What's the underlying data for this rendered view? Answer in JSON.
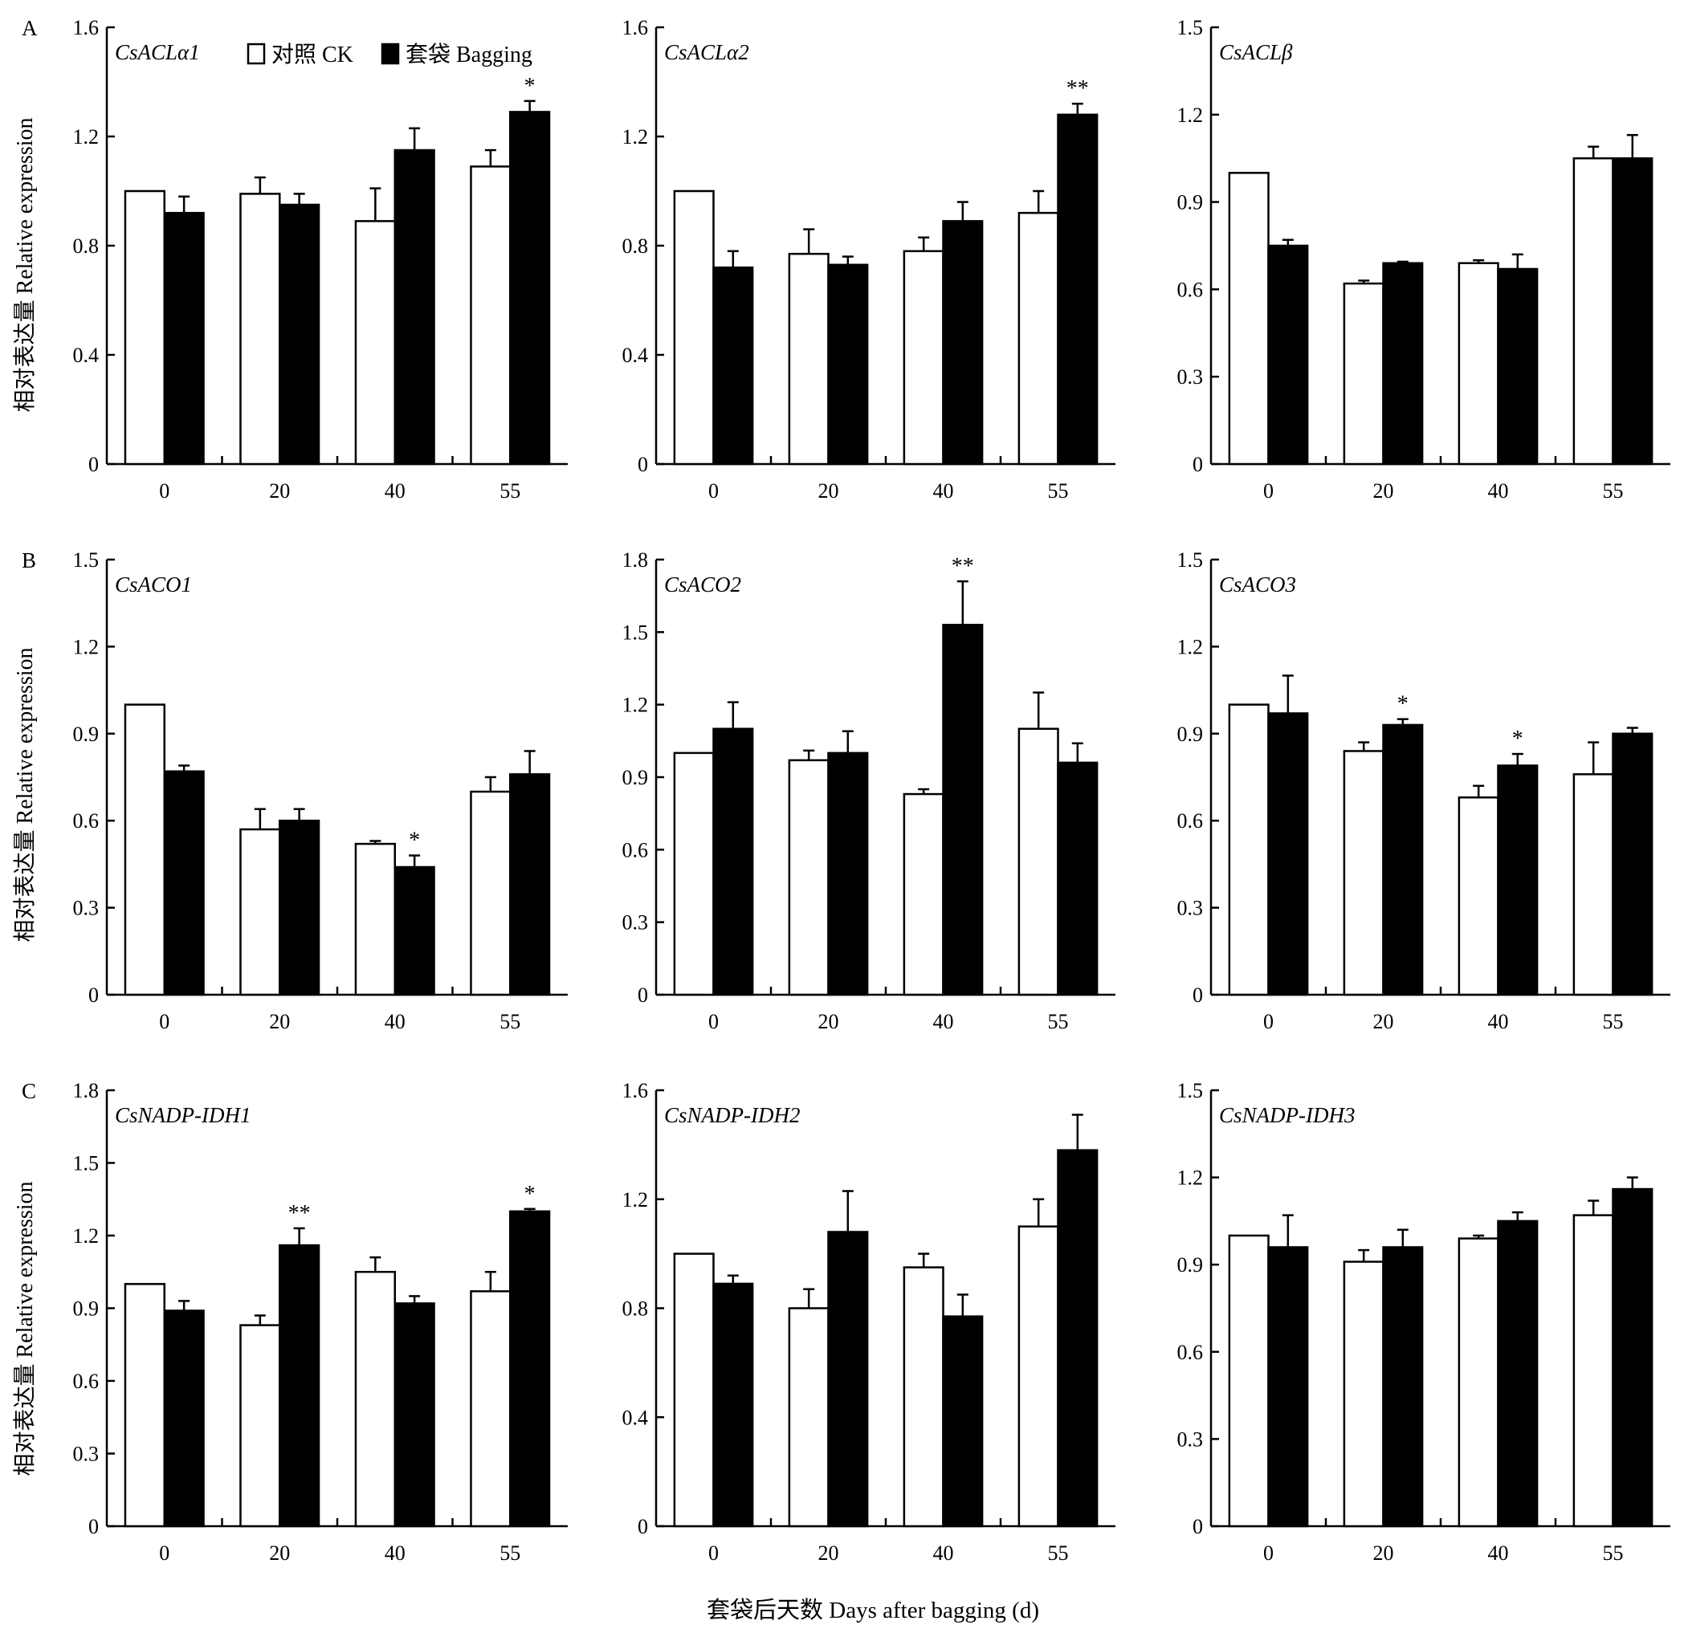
{
  "legend": {
    "ck": "对照 CK",
    "bagging": "套袋 Bagging"
  },
  "ylabel": "相对表达量 Relative expression",
  "xlabel": "套袋后天数 Days after bagging (d)",
  "colors": {
    "ck": "#ffffff",
    "bagging": "#000000",
    "axis": "#000000"
  },
  "chart_data": [
    {
      "type": "bar",
      "panel_letter": "A",
      "title": "CsACLα1",
      "categories": [
        "0",
        "20",
        "40",
        "55"
      ],
      "ylim": [
        0,
        1.6
      ],
      "yticks": [
        "0",
        "0.4",
        "0.8",
        "1.2",
        "1.6"
      ],
      "series": [
        {
          "name": "对照 CK",
          "values": [
            1.0,
            0.99,
            0.89,
            1.09
          ],
          "errors": [
            0,
            0.06,
            0.12,
            0.06
          ],
          "sig": [
            "",
            "",
            "",
            ""
          ]
        },
        {
          "name": "套袋 Bagging",
          "values": [
            0.92,
            0.95,
            1.15,
            1.29
          ],
          "errors": [
            0.06,
            0.04,
            0.08,
            0.04
          ],
          "sig": [
            "",
            "",
            "",
            "*"
          ]
        }
      ]
    },
    {
      "type": "bar",
      "panel_letter": "",
      "title": "CsACLα2",
      "categories": [
        "0",
        "20",
        "40",
        "55"
      ],
      "ylim": [
        0,
        1.6
      ],
      "yticks": [
        "0",
        "0.4",
        "0.8",
        "1.2",
        "1.6"
      ],
      "series": [
        {
          "name": "对照 CK",
          "values": [
            1.0,
            0.77,
            0.78,
            0.92
          ],
          "errors": [
            0,
            0.09,
            0.05,
            0.08
          ],
          "sig": [
            "",
            "",
            "",
            ""
          ]
        },
        {
          "name": "套袋 Bagging",
          "values": [
            0.72,
            0.73,
            0.89,
            1.28
          ],
          "errors": [
            0.06,
            0.03,
            0.07,
            0.04
          ],
          "sig": [
            "",
            "",
            "",
            "**"
          ]
        }
      ]
    },
    {
      "type": "bar",
      "panel_letter": "",
      "title": "CsACLβ",
      "categories": [
        "0",
        "20",
        "40",
        "55"
      ],
      "ylim": [
        0,
        1.5
      ],
      "yticks": [
        "0",
        "0.3",
        "0.6",
        "0.9",
        "1.2",
        "1.5"
      ],
      "series": [
        {
          "name": "对照 CK",
          "values": [
            1.0,
            0.62,
            0.69,
            1.05
          ],
          "errors": [
            0,
            0.01,
            0.01,
            0.04
          ],
          "sig": [
            "",
            "",
            "",
            ""
          ]
        },
        {
          "name": "套袋 Bagging",
          "values": [
            0.75,
            0.69,
            0.67,
            1.05
          ],
          "errors": [
            0.02,
            0.005,
            0.05,
            0.08
          ],
          "sig": [
            "",
            "",
            "",
            ""
          ]
        }
      ]
    },
    {
      "type": "bar",
      "panel_letter": "B",
      "title": "CsACO1",
      "categories": [
        "0",
        "20",
        "40",
        "55"
      ],
      "ylim": [
        0,
        1.5
      ],
      "yticks": [
        "0",
        "0.3",
        "0.6",
        "0.9",
        "1.2",
        "1.5"
      ],
      "series": [
        {
          "name": "对照 CK",
          "values": [
            1.0,
            0.57,
            0.52,
            0.7
          ],
          "errors": [
            0,
            0.07,
            0.01,
            0.05
          ],
          "sig": [
            "",
            "",
            "",
            ""
          ]
        },
        {
          "name": "套袋 Bagging",
          "values": [
            0.77,
            0.6,
            0.44,
            0.76
          ],
          "errors": [
            0.02,
            0.04,
            0.04,
            0.08
          ],
          "sig": [
            "",
            "",
            "*",
            ""
          ]
        }
      ]
    },
    {
      "type": "bar",
      "panel_letter": "",
      "title": "CsACO2",
      "categories": [
        "0",
        "20",
        "40",
        "55"
      ],
      "ylim": [
        0,
        1.8
      ],
      "yticks": [
        "0",
        "0.3",
        "0.6",
        "0.9",
        "1.2",
        "1.5",
        "1.8"
      ],
      "series": [
        {
          "name": "对照 CK",
          "values": [
            1.0,
            0.97,
            0.83,
            1.1
          ],
          "errors": [
            0,
            0.04,
            0.02,
            0.15
          ],
          "sig": [
            "",
            "",
            "",
            ""
          ]
        },
        {
          "name": "套袋 Bagging",
          "values": [
            1.1,
            1.0,
            1.53,
            0.96
          ],
          "errors": [
            0.11,
            0.09,
            0.18,
            0.08
          ],
          "sig": [
            "",
            "",
            "**",
            ""
          ]
        }
      ]
    },
    {
      "type": "bar",
      "panel_letter": "",
      "title": "CsACO3",
      "categories": [
        "0",
        "20",
        "40",
        "55"
      ],
      "ylim": [
        0,
        1.5
      ],
      "yticks": [
        "0",
        "0.3",
        "0.6",
        "0.9",
        "1.2",
        "1.5"
      ],
      "series": [
        {
          "name": "对照 CK",
          "values": [
            1.0,
            0.84,
            0.68,
            0.76
          ],
          "errors": [
            0,
            0.03,
            0.04,
            0.11
          ],
          "sig": [
            "",
            "",
            "",
            ""
          ]
        },
        {
          "name": "套袋 Bagging",
          "values": [
            0.97,
            0.93,
            0.79,
            0.9
          ],
          "errors": [
            0.13,
            0.02,
            0.04,
            0.02
          ],
          "sig": [
            "",
            "*",
            "*",
            ""
          ]
        }
      ]
    },
    {
      "type": "bar",
      "panel_letter": "C",
      "title": "CsNADP-IDH1",
      "categories": [
        "0",
        "20",
        "40",
        "55"
      ],
      "ylim": [
        0,
        1.8
      ],
      "yticks": [
        "0",
        "0.3",
        "0.6",
        "0.9",
        "1.2",
        "1.5",
        "1.8"
      ],
      "series": [
        {
          "name": "对照 CK",
          "values": [
            1.0,
            0.83,
            1.05,
            0.97
          ],
          "errors": [
            0,
            0.04,
            0.06,
            0.08
          ],
          "sig": [
            "",
            "",
            "",
            ""
          ]
        },
        {
          "name": "套袋 Bagging",
          "values": [
            0.89,
            1.16,
            0.92,
            1.3
          ],
          "errors": [
            0.04,
            0.07,
            0.03,
            0.01
          ],
          "sig": [
            "",
            "**",
            "",
            "*"
          ]
        }
      ]
    },
    {
      "type": "bar",
      "panel_letter": "",
      "title": "CsNADP-IDH2",
      "categories": [
        "0",
        "20",
        "40",
        "55"
      ],
      "ylim": [
        0,
        1.6
      ],
      "yticks": [
        "0",
        "0.4",
        "0.8",
        "1.2",
        "1.6"
      ],
      "series": [
        {
          "name": "对照 CK",
          "values": [
            1.0,
            0.8,
            0.95,
            1.1
          ],
          "errors": [
            0,
            0.07,
            0.05,
            0.1
          ],
          "sig": [
            "",
            "",
            "",
            ""
          ]
        },
        {
          "name": "套袋 Bagging",
          "values": [
            0.89,
            1.08,
            0.77,
            1.38
          ],
          "errors": [
            0.03,
            0.15,
            0.08,
            0.13
          ],
          "sig": [
            "",
            "",
            "",
            ""
          ]
        }
      ]
    },
    {
      "type": "bar",
      "panel_letter": "",
      "title": "CsNADP-IDH3",
      "categories": [
        "0",
        "20",
        "40",
        "55"
      ],
      "ylim": [
        0,
        1.5
      ],
      "yticks": [
        "0",
        "0.3",
        "0.6",
        "0.9",
        "1.2",
        "1.5"
      ],
      "series": [
        {
          "name": "对照 CK",
          "values": [
            1.0,
            0.91,
            0.99,
            1.07
          ],
          "errors": [
            0,
            0.04,
            0.01,
            0.05
          ],
          "sig": [
            "",
            "",
            "",
            ""
          ]
        },
        {
          "name": "套袋 Bagging",
          "values": [
            0.96,
            0.96,
            1.05,
            1.16
          ],
          "errors": [
            0.11,
            0.06,
            0.03,
            0.04
          ],
          "sig": [
            "",
            "",
            "",
            ""
          ]
        }
      ]
    }
  ]
}
